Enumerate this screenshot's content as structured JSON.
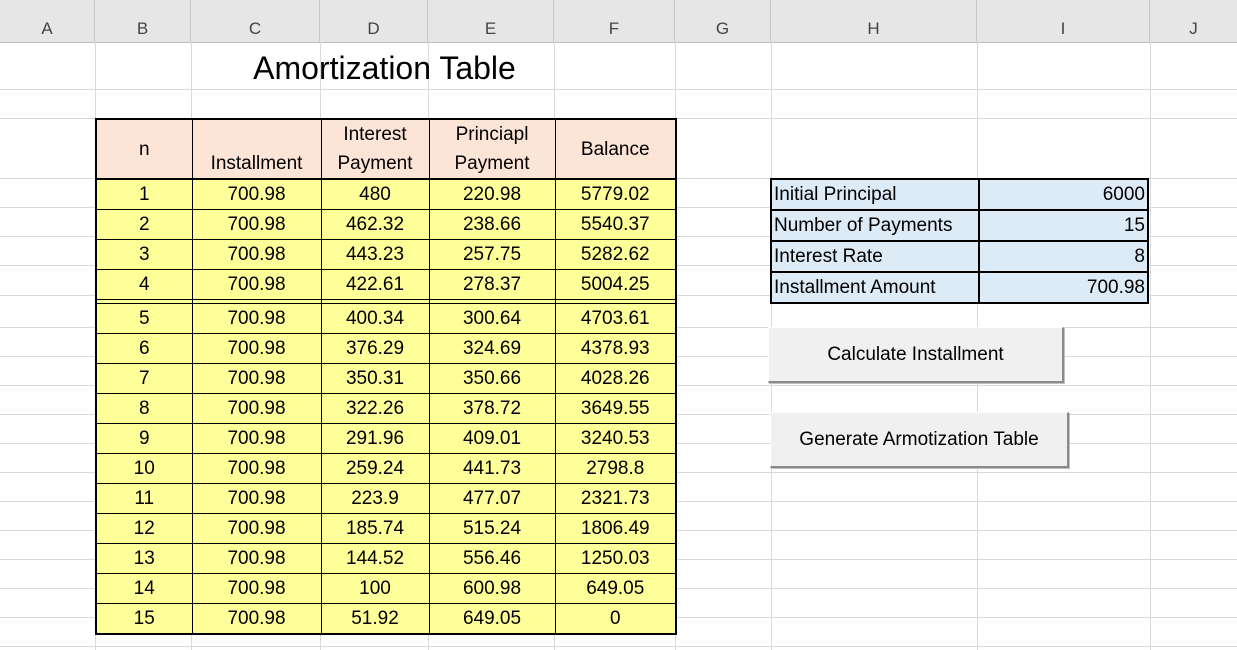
{
  "columns": [
    "A",
    "B",
    "C",
    "D",
    "E",
    "F",
    "G",
    "H",
    "I",
    "J"
  ],
  "title": "Amortization Table",
  "table": {
    "headers": {
      "n": "n",
      "installment": "Installment",
      "interest_line1": "Interest",
      "interest_line2": "Payment",
      "principal_line1": "Princiapl",
      "principal_line2": "Payment",
      "balance": "Balance"
    },
    "rows": [
      [
        "1",
        "700.98",
        "480",
        "220.98",
        "5779.02"
      ],
      [
        "2",
        "700.98",
        "462.32",
        "238.66",
        "5540.37"
      ],
      [
        "3",
        "700.98",
        "443.23",
        "257.75",
        "5282.62"
      ],
      [
        "4",
        "700.98",
        "422.61",
        "278.37",
        "5004.25"
      ],
      [
        "5",
        "700.98",
        "400.34",
        "300.64",
        "4703.61"
      ],
      [
        "6",
        "700.98",
        "376.29",
        "324.69",
        "4378.93"
      ],
      [
        "7",
        "700.98",
        "350.31",
        "350.66",
        "4028.26"
      ],
      [
        "8",
        "700.98",
        "322.26",
        "378.72",
        "3649.55"
      ],
      [
        "9",
        "700.98",
        "291.96",
        "409.01",
        "3240.53"
      ],
      [
        "10",
        "700.98",
        "259.24",
        "441.73",
        "2798.8"
      ],
      [
        "11",
        "700.98",
        "223.9",
        "477.07",
        "2321.73"
      ],
      [
        "12",
        "700.98",
        "185.74",
        "515.24",
        "1806.49"
      ],
      [
        "13",
        "700.98",
        "144.52",
        "556.46",
        "1250.03"
      ],
      [
        "14",
        "700.98",
        "100",
        "600.98",
        "649.05"
      ],
      [
        "15",
        "700.98",
        "51.92",
        "649.05",
        "0"
      ]
    ]
  },
  "inputs": [
    {
      "label": "Initial Principal",
      "value": "6000"
    },
    {
      "label": "Number of Payments",
      "value": "15"
    },
    {
      "label": "Interest Rate",
      "value": "8"
    },
    {
      "label": "Installment Amount",
      "value": "700.98"
    }
  ],
  "buttons": {
    "calculate": "Calculate Installment",
    "generate": "Generate Armotization Table"
  },
  "colors": {
    "header_fill": "#fce4d6",
    "data_fill": "#ffff99",
    "input_fill": "#ddebf7",
    "button_face": "#f0f0f0"
  }
}
